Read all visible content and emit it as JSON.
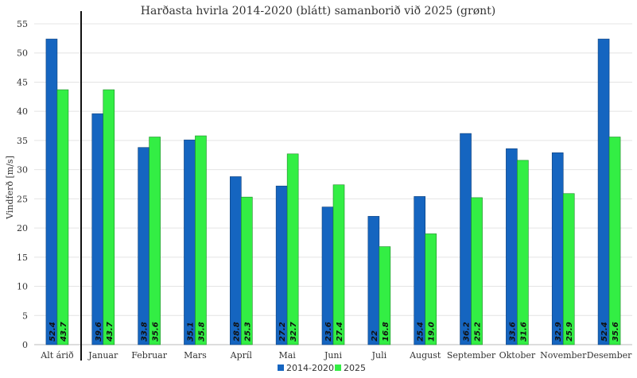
{
  "chart_data": {
    "type": "bar",
    "title": "Harðasta hvirla 2014-2020 (blátt) samanborið við 2025 (grønt)",
    "ylabel": "Vindferð [m/s]",
    "xlabel": "",
    "ylim": [
      0,
      55
    ],
    "yticks": [
      0,
      5,
      10,
      15,
      20,
      25,
      30,
      35,
      40,
      45,
      50,
      55
    ],
    "grid": true,
    "legend_position": "bottom",
    "categories": [
      "Alt árið",
      "Januar",
      "Februar",
      "Mars",
      "Apríl",
      "Mai",
      "Juni",
      "Juli",
      "August",
      "September",
      "Oktober",
      "November",
      "Desember"
    ],
    "series": [
      {
        "name": "2014-2020",
        "color": "#1565c0",
        "values": [
          52.4,
          39.6,
          33.8,
          35.1,
          28.8,
          27.2,
          23.6,
          22,
          25.4,
          36.2,
          33.6,
          32.9,
          52.4
        ],
        "labels": [
          "52.4",
          "39.6",
          "33.8",
          "35.1",
          "28.8",
          "27.2",
          "23.6",
          "22",
          "25.4",
          "36.2",
          "33.6",
          "32.9",
          "52.4"
        ]
      },
      {
        "name": "2025",
        "color": "#33ee44",
        "values": [
          43.7,
          43.7,
          35.6,
          35.8,
          25.3,
          32.7,
          27.4,
          16.8,
          19.0,
          25.2,
          31.6,
          25.9,
          35.6
        ],
        "labels": [
          "43.7",
          "43.7",
          "35.6",
          "35.8",
          "25.3",
          "32.7",
          "27.4",
          "16.8",
          "19.0",
          "25.2",
          "31.6",
          "25.9",
          "35.6"
        ]
      }
    ]
  }
}
